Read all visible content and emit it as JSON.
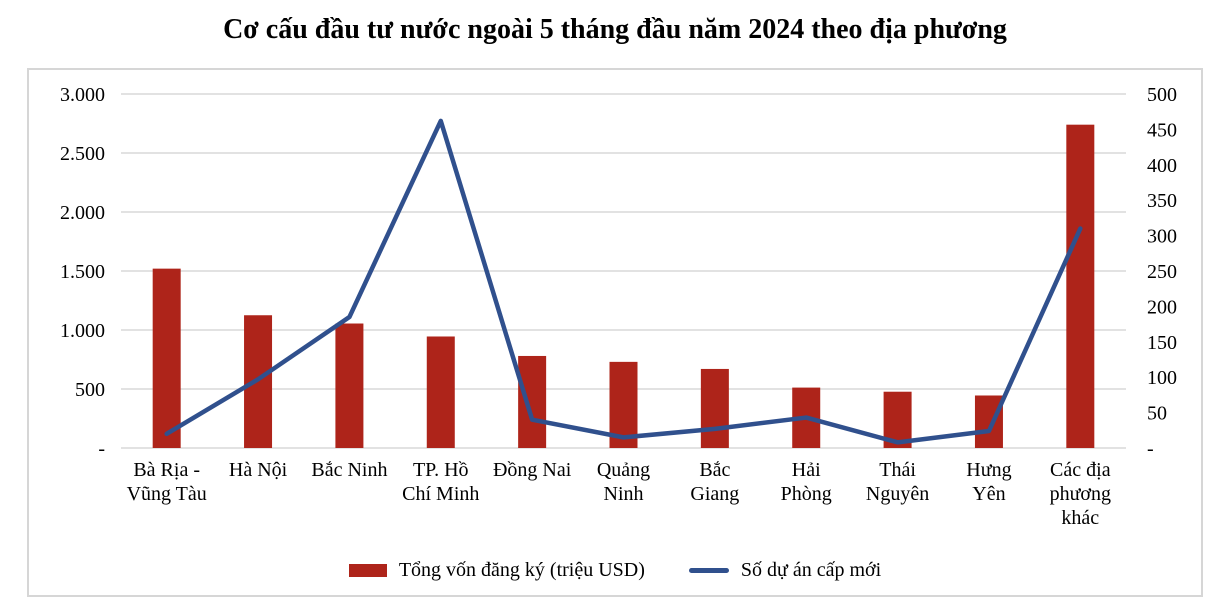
{
  "title": "Cơ cấu đầu tư nước ngoài 5 tháng đầu năm 2024 theo địa phương",
  "colors": {
    "bar": "#ae241a",
    "line": "#30508d",
    "grid": "#d9d9d9",
    "frame": "#d6d6d6",
    "text": "#000000"
  },
  "legend": {
    "items": [
      {
        "type": "bar",
        "label": "Tổng vốn đăng ký (triệu USD)"
      },
      {
        "type": "line",
        "label": "Số dự án cấp mới"
      }
    ],
    "position": "bottom"
  },
  "chart_data": {
    "type": "combo-bar-line",
    "categories": [
      "Bà Rịa - Vũng Tàu",
      "Hà Nội",
      "Bắc Ninh",
      "TP. Hồ Chí Minh",
      "Đồng Nai",
      "Quảng Ninh",
      "Bắc Giang",
      "Hải Phòng",
      "Thái Nguyên",
      "Hưng Yên",
      "Các địa phương khác"
    ],
    "category_label_lines": [
      [
        "Bà Rịa -",
        "Vũng Tàu"
      ],
      [
        "Hà Nội"
      ],
      [
        "Bắc Ninh"
      ],
      [
        "TP. Hồ",
        "Chí Minh"
      ],
      [
        "Đồng Nai"
      ],
      [
        "Quảng",
        "Ninh"
      ],
      [
        "Bắc",
        "Giang"
      ],
      [
        "Hải",
        "Phòng"
      ],
      [
        "Thái",
        "Nguyên"
      ],
      [
        "Hưng",
        "Yên"
      ],
      [
        "Các địa",
        "phương",
        "khác"
      ]
    ],
    "series": [
      {
        "name": "Tổng vốn đăng ký (triệu USD)",
        "type": "bar",
        "axis": "left",
        "values": [
          1520,
          1125,
          1055,
          945,
          780,
          730,
          670,
          512,
          477,
          445,
          2740
        ]
      },
      {
        "name": "Số dự án cấp mới",
        "type": "line",
        "axis": "right",
        "values": [
          20,
          97,
          185,
          462,
          40,
          15,
          27,
          43,
          8,
          24,
          310
        ]
      }
    ],
    "left_axis": {
      "min": 0,
      "max": 3000,
      "step": 500,
      "tick_labels": [
        "-",
        "500",
        "1.000",
        "1.500",
        "2.000",
        "2.500",
        "3.000"
      ]
    },
    "right_axis": {
      "min": 0,
      "max": 500,
      "step": 50,
      "tick_labels": [
        "-",
        "50",
        "100",
        "150",
        "200",
        "250",
        "300",
        "350",
        "400",
        "450",
        "500"
      ]
    },
    "grid": true,
    "legend_position": "bottom"
  }
}
